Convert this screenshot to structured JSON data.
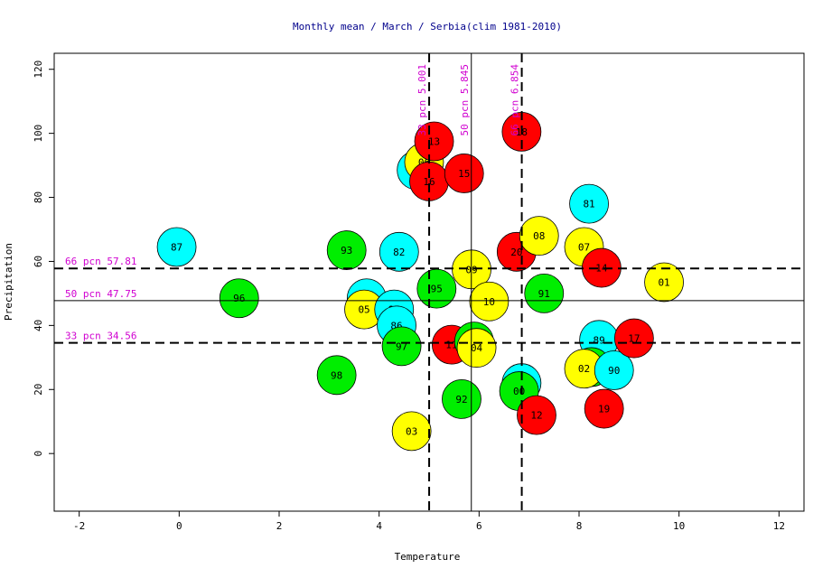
{
  "chart_data": {
    "type": "scatter",
    "title": "Monthly mean / March / Serbia(clim 1981-2010)",
    "xlabel": "Temperature",
    "ylabel": "Precipitation",
    "xlim": [
      -2.5,
      12.5
    ],
    "ylim": [
      -18,
      125
    ],
    "xticks": [
      -2,
      0,
      2,
      4,
      6,
      8,
      10,
      12
    ],
    "yticks": [
      0,
      20,
      40,
      60,
      80,
      100,
      120
    ],
    "colors": {
      "cyan": "#00ffff",
      "green": "#00ee00",
      "yellow": "#ffff00",
      "red": "#ff0000",
      "title": "#00008b",
      "reference": "#d000d0"
    },
    "vertical_lines": [
      {
        "label": "33 pcn 5.001",
        "x": 5.001,
        "style": "dashed"
      },
      {
        "label": "50 pcn 5.845",
        "x": 5.845,
        "style": "solid"
      },
      {
        "label": "66 pcn 6.854",
        "x": 6.854,
        "style": "dashed"
      }
    ],
    "horizontal_lines": [
      {
        "label": "66 pcn 57.81",
        "y": 57.81,
        "style": "dashed"
      },
      {
        "label": "50 pcn 47.75",
        "y": 47.75,
        "style": "solid"
      },
      {
        "label": "33 pcn 34.56",
        "y": 34.56,
        "style": "dashed"
      }
    ],
    "points": [
      {
        "label": "87",
        "x": -0.05,
        "y": 64.5,
        "color": "cyan"
      },
      {
        "label": "96",
        "x": 1.2,
        "y": 48.5,
        "color": "green"
      },
      {
        "label": "98",
        "x": 3.15,
        "y": 24.5,
        "color": "green"
      },
      {
        "label": "93",
        "x": 3.35,
        "y": 63.5,
        "color": "green"
      },
      {
        "label": "84",
        "x": 3.75,
        "y": 48.5,
        "color": "cyan"
      },
      {
        "label": "05",
        "x": 3.7,
        "y": 45,
        "color": "yellow"
      },
      {
        "label": "85",
        "x": 4.3,
        "y": 45,
        "color": "cyan"
      },
      {
        "label": "86",
        "x": 4.35,
        "y": 40,
        "color": "cyan"
      },
      {
        "label": "97",
        "x": 4.45,
        "y": 33.5,
        "color": "green"
      },
      {
        "label": "82",
        "x": 4.4,
        "y": 63,
        "color": "cyan"
      },
      {
        "label": "03",
        "x": 4.65,
        "y": 7,
        "color": "yellow"
      },
      {
        "label": "88",
        "x": 4.75,
        "y": 88.5,
        "color": "cyan"
      },
      {
        "label": "06",
        "x": 4.9,
        "y": 91,
        "color": "yellow"
      },
      {
        "label": "13",
        "x": 5.1,
        "y": 97.5,
        "color": "red"
      },
      {
        "label": "16",
        "x": 5.0,
        "y": 85,
        "color": "red"
      },
      {
        "label": "95",
        "x": 5.15,
        "y": 51.5,
        "color": "green"
      },
      {
        "label": "11",
        "x": 5.45,
        "y": 34,
        "color": "red"
      },
      {
        "label": "92",
        "x": 5.65,
        "y": 17,
        "color": "green"
      },
      {
        "label": "15",
        "x": 5.7,
        "y": 87.5,
        "color": "red"
      },
      {
        "label": "09",
        "x": 5.85,
        "y": 57.5,
        "color": "yellow"
      },
      {
        "label": "99",
        "x": 5.9,
        "y": 35,
        "color": "green"
      },
      {
        "label": "04",
        "x": 5.95,
        "y": 33,
        "color": "yellow"
      },
      {
        "label": "10",
        "x": 6.2,
        "y": 47.5,
        "color": "yellow"
      },
      {
        "label": "20",
        "x": 6.75,
        "y": 63,
        "color": "red"
      },
      {
        "label": "83",
        "x": 6.85,
        "y": 22,
        "color": "cyan"
      },
      {
        "label": "00",
        "x": 6.8,
        "y": 19.5,
        "color": "green"
      },
      {
        "label": "18",
        "x": 6.85,
        "y": 100.5,
        "color": "red"
      },
      {
        "label": "12",
        "x": 7.15,
        "y": 12,
        "color": "red"
      },
      {
        "label": "08",
        "x": 7.2,
        "y": 68,
        "color": "yellow"
      },
      {
        "label": "91",
        "x": 7.3,
        "y": 50,
        "color": "green"
      },
      {
        "label": "07",
        "x": 8.1,
        "y": 64.5,
        "color": "yellow"
      },
      {
        "label": "81",
        "x": 8.2,
        "y": 78,
        "color": "cyan"
      },
      {
        "label": "14",
        "x": 8.45,
        "y": 58,
        "color": "red"
      },
      {
        "label": "89",
        "x": 8.4,
        "y": 35.5,
        "color": "cyan"
      },
      {
        "label": "94",
        "x": 8.25,
        "y": 27,
        "color": "green"
      },
      {
        "label": "02",
        "x": 8.1,
        "y": 26.5,
        "color": "yellow"
      },
      {
        "label": "90",
        "x": 8.7,
        "y": 26,
        "color": "cyan"
      },
      {
        "label": "19",
        "x": 8.5,
        "y": 14,
        "color": "red"
      },
      {
        "label": "17",
        "x": 9.1,
        "y": 36,
        "color": "red"
      },
      {
        "label": "01",
        "x": 9.7,
        "y": 53.5,
        "color": "yellow"
      }
    ]
  }
}
